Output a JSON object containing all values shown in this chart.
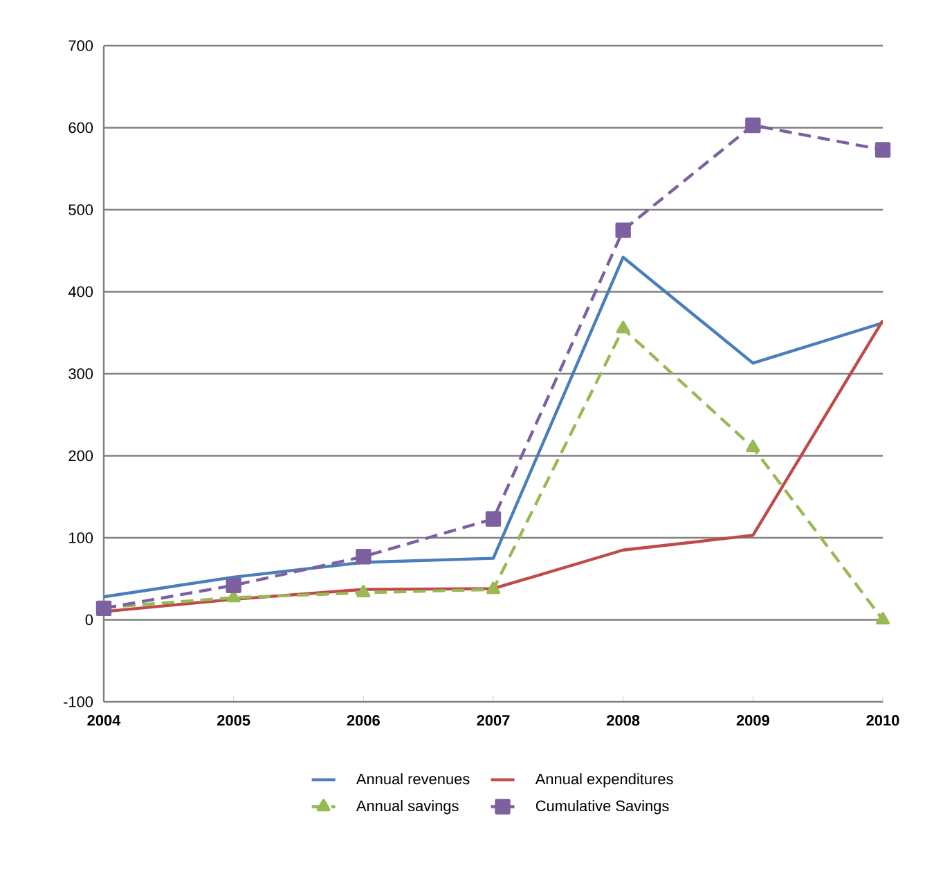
{
  "chart_data": {
    "type": "line",
    "x": [
      2004,
      2005,
      2006,
      2007,
      2008,
      2009,
      2010
    ],
    "series": [
      {
        "name": "Annual revenues",
        "color": "#4a7ebb",
        "line_style": "solid",
        "marker": "none",
        "values": [
          28,
          52,
          70,
          75,
          442,
          313,
          362
        ]
      },
      {
        "name": "Annual expenditures",
        "color": "#be4b48",
        "line_style": "solid",
        "marker": "none",
        "values": [
          10,
          25,
          37,
          38,
          85,
          103,
          365
        ]
      },
      {
        "name": "Annual savings",
        "color": "#98b954",
        "line_style": "dashed",
        "marker": "triangle",
        "values": [
          15,
          27,
          33,
          37,
          355,
          210,
          0
        ]
      },
      {
        "name": "Cumulative Savings",
        "color": "#7d60a0",
        "line_style": "dashed",
        "marker": "square",
        "values": [
          14,
          42,
          77,
          123,
          475,
          603,
          573
        ]
      }
    ],
    "xlim": [
      2004,
      2010
    ],
    "xticks": [
      2004,
      2005,
      2006,
      2007,
      2008,
      2009,
      2010
    ],
    "ylim": [
      -100,
      700
    ],
    "yticks": [
      -100,
      0,
      100,
      200,
      300,
      400,
      500,
      600,
      700
    ],
    "grid": "y",
    "legend": "bottom"
  }
}
